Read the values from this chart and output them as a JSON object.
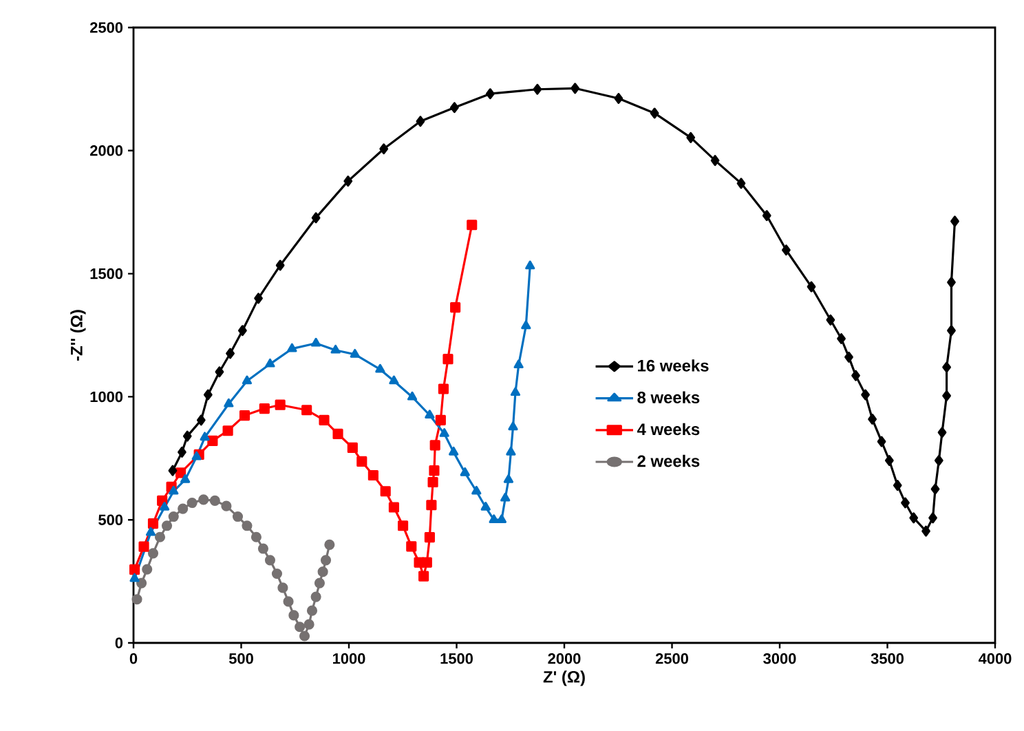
{
  "chart_data": {
    "type": "line",
    "xlabel": "Z' (Ω)",
    "ylabel": "-Z'' (Ω)",
    "xlim": [
      0,
      4000
    ],
    "ylim": [
      0,
      2500
    ],
    "xticks": [
      0,
      500,
      1000,
      1500,
      2000,
      2500,
      3000,
      3500,
      4000
    ],
    "yticks": [
      0,
      500,
      1000,
      1500,
      2000,
      2500
    ],
    "grid": false,
    "legend": "right",
    "series": [
      {
        "name": "16 weeks",
        "color": "#000000",
        "marker": "diamond",
        "x": [
          182,
          225,
          250,
          314,
          346,
          399,
          449,
          506,
          580,
          681,
          847,
          996,
          1162,
          1332,
          1490,
          1656,
          1875,
          2050,
          2252,
          2419,
          2587,
          2700,
          2821,
          2940,
          3030,
          3147,
          3236,
          3286,
          3321,
          3353,
          3398,
          3430,
          3473,
          3509,
          3547,
          3583,
          3622,
          3679,
          3711,
          3722,
          3739,
          3754,
          3775,
          3775,
          3797,
          3797,
          3813
        ],
        "values": [
          700,
          775,
          840,
          905,
          1008,
          1101,
          1176,
          1269,
          1400,
          1534,
          1727,
          1876,
          2007,
          2119,
          2175,
          2231,
          2249,
          2253,
          2212,
          2152,
          2053,
          1960,
          1867,
          1736,
          1596,
          1447,
          1312,
          1236,
          1161,
          1086,
          1008,
          909,
          818,
          741,
          640,
          569,
          508,
          454,
          508,
          625,
          741,
          855,
          1004,
          1120,
          1269,
          1465,
          1713
        ]
      },
      {
        "name": "8 weeks",
        "color": "#0070c0",
        "marker": "triangle",
        "x": [
          5,
          80,
          144,
          186,
          240,
          293,
          331,
          442,
          527,
          634,
          736,
          847,
          938,
          1028,
          1145,
          1209,
          1294,
          1375,
          1443,
          1486,
          1539,
          1592,
          1635,
          1673,
          1709,
          1726,
          1741,
          1752,
          1762,
          1773,
          1788,
          1822,
          1841
        ],
        "values": [
          261,
          448,
          551,
          616,
          663,
          756,
          835,
          971,
          1064,
          1133,
          1195,
          1217,
          1189,
          1172,
          1111,
          1064,
          999,
          925,
          850,
          775,
          691,
          616,
          551,
          500,
          500,
          588,
          663,
          775,
          877,
          1017,
          1129,
          1288,
          1531
        ]
      },
      {
        "name": "4 weeks",
        "color": "#ff0000",
        "marker": "square",
        "x": [
          5,
          48,
          91,
          133,
          176,
          219,
          304,
          367,
          438,
          516,
          608,
          681,
          804,
          885,
          949,
          1017,
          1060,
          1113,
          1170,
          1209,
          1251,
          1290,
          1326,
          1347,
          1362,
          1375,
          1383,
          1390,
          1396,
          1400,
          1426,
          1439,
          1460,
          1494,
          1571
        ],
        "values": [
          298,
          391,
          485,
          578,
          634,
          691,
          765,
          821,
          862,
          924,
          952,
          967,
          946,
          905,
          849,
          793,
          737,
          681,
          616,
          551,
          476,
          392,
          327,
          271,
          327,
          429,
          560,
          653,
          700,
          803,
          905,
          1032,
          1153,
          1363,
          1698
        ]
      },
      {
        "name": "2 weeks",
        "color": "#767171",
        "marker": "circle",
        "x": [
          16,
          37,
          63,
          91,
          123,
          155,
          186,
          229,
          272,
          325,
          378,
          431,
          484,
          527,
          570,
          602,
          634,
          666,
          693,
          719,
          744,
          772,
          794,
          815,
          829,
          847,
          864,
          879,
          893,
          910
        ],
        "values": [
          177,
          243,
          299,
          364,
          430,
          476,
          513,
          545,
          569,
          582,
          578,
          556,
          513,
          476,
          430,
          383,
          336,
          281,
          224,
          168,
          112,
          65,
          28,
          75,
          131,
          187,
          243,
          289,
          336,
          399
        ]
      }
    ]
  }
}
